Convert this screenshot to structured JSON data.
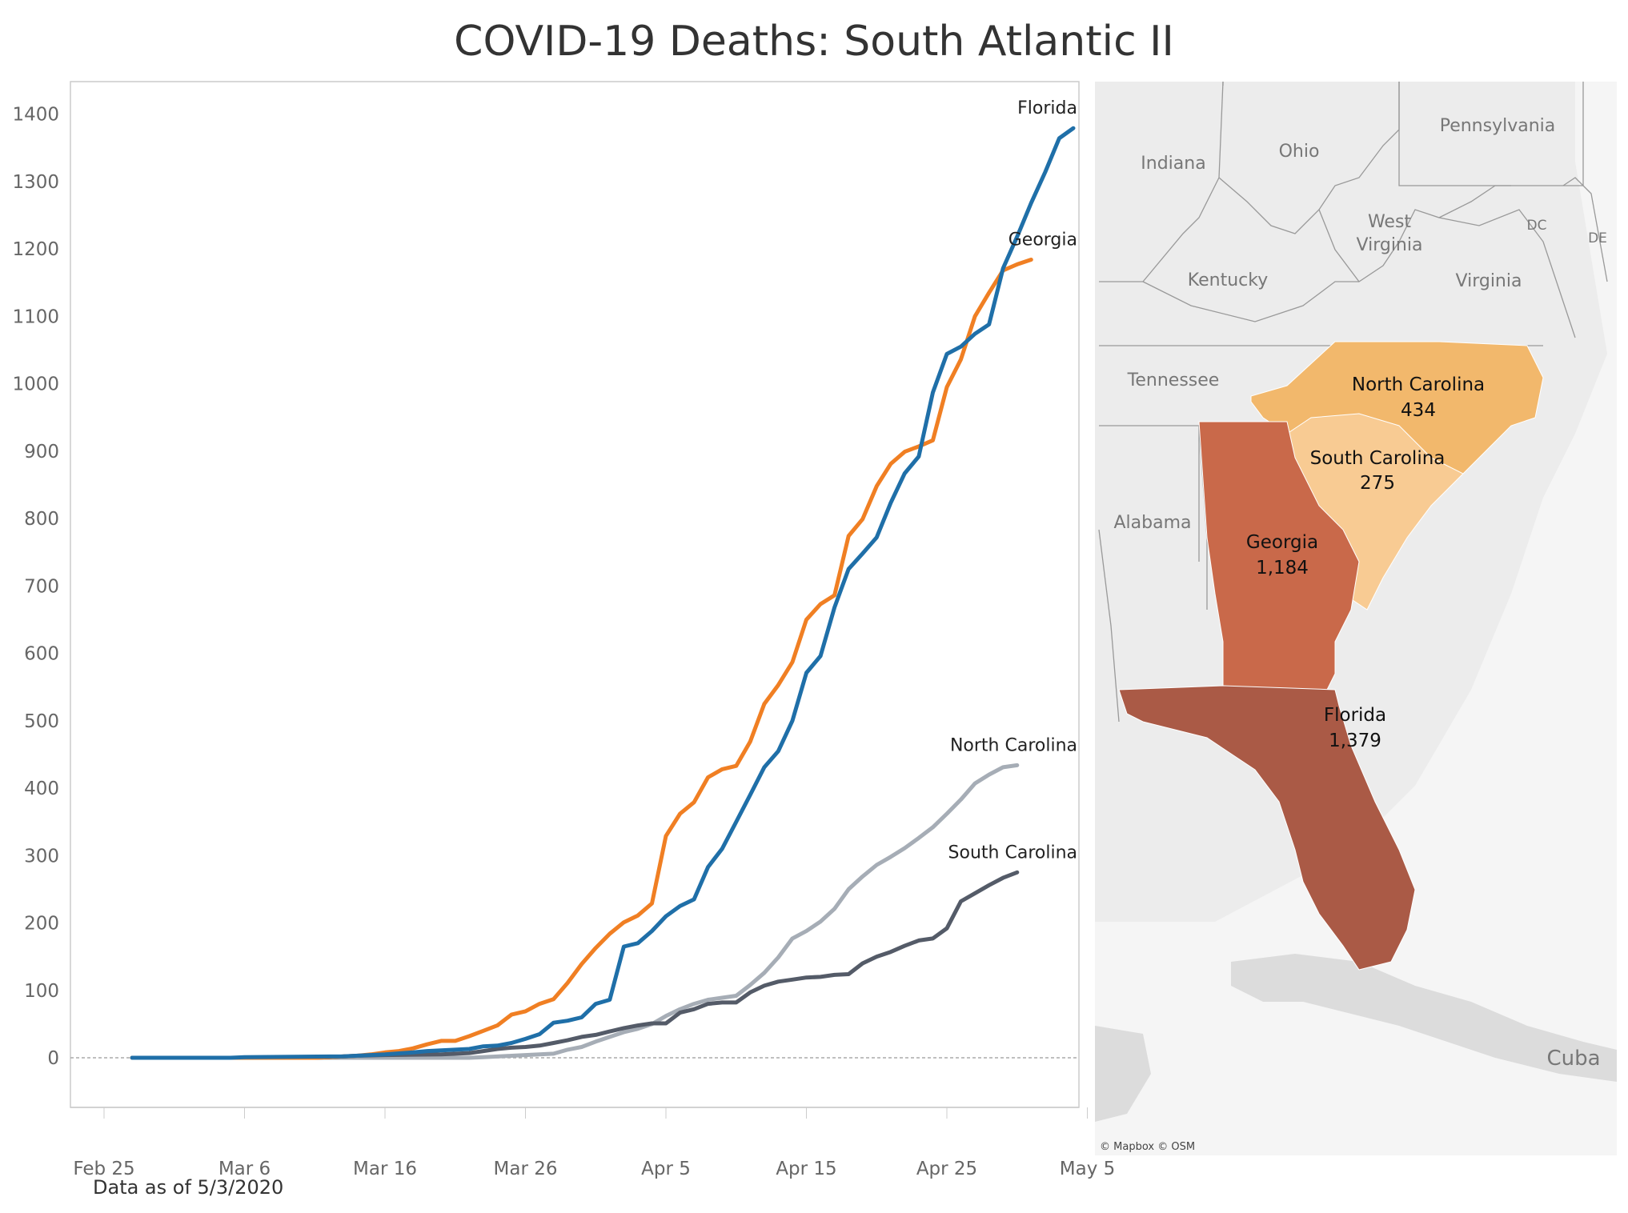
{
  "title": "COVID-19 Deaths: South Atlantic II",
  "footnote": "Data as of 5/3/2020",
  "map": {
    "attribution": "© Mapbox © OSM",
    "context_labels": [
      "Indiana",
      "Ohio",
      "Pennsylvania",
      "West Virginia",
      "DC",
      "DE",
      "Kentucky",
      "Virginia",
      "Tennessee",
      "Alabama",
      "Cuba"
    ],
    "states": [
      {
        "name": "North Carolina",
        "value_label": "434",
        "color": "#f2b86c"
      },
      {
        "name": "South Carolina",
        "value_label": "275",
        "color": "#f8cb93"
      },
      {
        "name": "Georgia",
        "value_label": "1,184",
        "color": "#c9694a"
      },
      {
        "name": "Florida",
        "value_label": "1,379",
        "color": "#aa5a46"
      }
    ]
  },
  "chart_data": {
    "type": "line",
    "title": "COVID-19 Deaths: South Atlantic II",
    "x_tick_labels": [
      "Feb 25",
      "Mar 6",
      "Mar 16",
      "Mar 26",
      "Apr 5",
      "Apr 15",
      "Apr 25",
      "May 5"
    ],
    "x_start_label": "Feb 25",
    "x_day_range": [
      0,
      70
    ],
    "ylim": [
      -70,
      1460
    ],
    "y_ticks": [
      0,
      100,
      200,
      300,
      400,
      500,
      600,
      700,
      800,
      900,
      1000,
      1100,
      1200,
      1300,
      1400
    ],
    "zero_line": true,
    "series": [
      {
        "name": "Florida",
        "color": "#1f6fa8",
        "label_end": true,
        "points": [
          [
            2,
            0
          ],
          [
            9,
            0
          ],
          [
            10,
            1
          ],
          [
            17,
            2
          ],
          [
            20,
            5
          ],
          [
            22,
            8
          ],
          [
            23,
            10
          ],
          [
            25,
            12
          ],
          [
            26,
            13
          ],
          [
            27,
            17
          ],
          [
            28,
            18
          ],
          [
            29,
            22
          ],
          [
            30,
            28
          ],
          [
            31,
            35
          ],
          [
            32,
            52
          ],
          [
            33,
            55
          ],
          [
            34,
            60
          ],
          [
            35,
            80
          ],
          [
            36,
            86
          ],
          [
            37,
            165
          ],
          [
            38,
            170
          ],
          [
            39,
            188
          ],
          [
            40,
            210
          ],
          [
            41,
            225
          ],
          [
            42,
            235
          ],
          [
            43,
            283
          ],
          [
            44,
            310
          ],
          [
            45,
            350
          ],
          [
            46,
            390
          ],
          [
            47,
            431
          ],
          [
            48,
            455
          ],
          [
            49,
            500
          ],
          [
            50,
            571
          ],
          [
            51,
            596
          ],
          [
            52,
            668
          ],
          [
            53,
            725
          ],
          [
            54,
            748
          ],
          [
            55,
            772
          ],
          [
            56,
            823
          ],
          [
            57,
            867
          ],
          [
            58,
            892
          ],
          [
            59,
            987
          ],
          [
            60,
            1044
          ],
          [
            61,
            1055
          ],
          [
            62,
            1074
          ],
          [
            63,
            1088
          ],
          [
            64,
            1171
          ],
          [
            65,
            1218
          ],
          [
            66,
            1268
          ],
          [
            67,
            1314
          ],
          [
            68,
            1364
          ],
          [
            69,
            1379
          ]
        ]
      },
      {
        "name": "Georgia",
        "color": "#f07f23",
        "label_end": true,
        "points": [
          [
            2,
            0
          ],
          [
            15,
            0
          ],
          [
            16,
            1
          ],
          [
            18,
            3
          ],
          [
            19,
            5
          ],
          [
            20,
            8
          ],
          [
            21,
            10
          ],
          [
            22,
            14
          ],
          [
            23,
            20
          ],
          [
            24,
            25
          ],
          [
            25,
            25
          ],
          [
            26,
            32
          ],
          [
            27,
            40
          ],
          [
            28,
            48
          ],
          [
            29,
            64
          ],
          [
            30,
            69
          ],
          [
            31,
            80
          ],
          [
            32,
            87
          ],
          [
            33,
            111
          ],
          [
            34,
            139
          ],
          [
            35,
            163
          ],
          [
            36,
            184
          ],
          [
            37,
            201
          ],
          [
            38,
            211
          ],
          [
            39,
            229
          ],
          [
            40,
            329
          ],
          [
            41,
            362
          ],
          [
            42,
            379
          ],
          [
            43,
            416
          ],
          [
            44,
            428
          ],
          [
            45,
            433
          ],
          [
            46,
            469
          ],
          [
            47,
            525
          ],
          [
            48,
            553
          ],
          [
            49,
            587
          ],
          [
            50,
            650
          ],
          [
            51,
            673
          ],
          [
            52,
            686
          ],
          [
            53,
            774
          ],
          [
            54,
            799
          ],
          [
            55,
            848
          ],
          [
            56,
            881
          ],
          [
            57,
            899
          ],
          [
            58,
            907
          ],
          [
            59,
            916
          ],
          [
            60,
            995
          ],
          [
            61,
            1036
          ],
          [
            62,
            1100
          ],
          [
            63,
            1135
          ],
          [
            64,
            1168
          ],
          [
            65,
            1177
          ],
          [
            66,
            1184
          ]
        ]
      },
      {
        "name": "North Carolina",
        "color": "#a6adb6",
        "label_end": true,
        "points": [
          [
            2,
            0
          ],
          [
            26,
            0
          ],
          [
            27,
            1
          ],
          [
            29,
            3
          ],
          [
            31,
            5
          ],
          [
            32,
            6
          ],
          [
            33,
            12
          ],
          [
            34,
            16
          ],
          [
            35,
            24
          ],
          [
            36,
            31
          ],
          [
            37,
            38
          ],
          [
            38,
            43
          ],
          [
            39,
            50
          ],
          [
            40,
            62
          ],
          [
            41,
            72
          ],
          [
            42,
            80
          ],
          [
            43,
            86
          ],
          [
            44,
            89
          ],
          [
            45,
            92
          ],
          [
            46,
            108
          ],
          [
            47,
            126
          ],
          [
            48,
            149
          ],
          [
            49,
            177
          ],
          [
            50,
            188
          ],
          [
            51,
            202
          ],
          [
            52,
            221
          ],
          [
            53,
            250
          ],
          [
            54,
            269
          ],
          [
            55,
            286
          ],
          [
            56,
            298
          ],
          [
            57,
            311
          ],
          [
            58,
            326
          ],
          [
            59,
            342
          ],
          [
            60,
            362
          ],
          [
            61,
            383
          ],
          [
            62,
            407
          ],
          [
            63,
            420
          ],
          [
            64,
            431
          ],
          [
            65,
            434
          ]
        ]
      },
      {
        "name": "South Carolina",
        "color": "#545b68",
        "label_end": true,
        "points": [
          [
            2,
            0
          ],
          [
            15,
            0
          ],
          [
            16,
            1
          ],
          [
            18,
            3
          ],
          [
            20,
            4
          ],
          [
            24,
            5
          ],
          [
            26,
            7
          ],
          [
            27,
            10
          ],
          [
            28,
            13
          ],
          [
            29,
            15
          ],
          [
            30,
            16
          ],
          [
            31,
            18
          ],
          [
            32,
            22
          ],
          [
            33,
            26
          ],
          [
            34,
            31
          ],
          [
            35,
            34
          ],
          [
            36,
            39
          ],
          [
            37,
            44
          ],
          [
            38,
            48
          ],
          [
            39,
            51
          ],
          [
            40,
            51
          ],
          [
            41,
            67
          ],
          [
            42,
            72
          ],
          [
            43,
            80
          ],
          [
            44,
            82
          ],
          [
            45,
            82
          ],
          [
            46,
            97
          ],
          [
            47,
            107
          ],
          [
            48,
            113
          ],
          [
            49,
            116
          ],
          [
            50,
            119
          ],
          [
            51,
            120
          ],
          [
            52,
            123
          ],
          [
            53,
            124
          ],
          [
            54,
            140
          ],
          [
            55,
            150
          ],
          [
            56,
            157
          ],
          [
            57,
            166
          ],
          [
            58,
            174
          ],
          [
            59,
            177
          ],
          [
            60,
            192
          ],
          [
            61,
            232
          ],
          [
            62,
            244
          ],
          [
            63,
            256
          ],
          [
            64,
            267
          ],
          [
            65,
            275
          ]
        ]
      }
    ]
  }
}
